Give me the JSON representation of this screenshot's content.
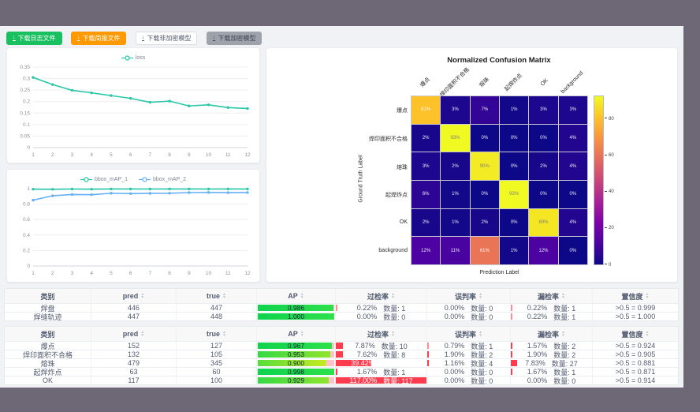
{
  "toolbar": {
    "buttons": [
      {
        "label": "下载日志文件",
        "bg": "#19c05f",
        "fg": "#ffffff",
        "border": "#19c05f"
      },
      {
        "label": "下载简报文件",
        "bg": "#ff9900",
        "fg": "#ffffff",
        "border": "#ff9900"
      },
      {
        "label": "下载非加密模型",
        "bg": "#ffffff",
        "fg": "#515a6e",
        "border": "#dcdee2"
      },
      {
        "label": "下载加密模型",
        "bg": "#9da2ab",
        "fg": "#3f4350",
        "border": "#9da2ab"
      }
    ]
  },
  "chart_data": [
    {
      "type": "line",
      "x": [
        1,
        2,
        3,
        4,
        5,
        6,
        7,
        8,
        9,
        10,
        11,
        12
      ],
      "series": [
        {
          "name": "loss",
          "color": "#29c6a7",
          "values": [
            0.305,
            0.274,
            0.249,
            0.238,
            0.226,
            0.214,
            0.197,
            0.202,
            0.181,
            0.186,
            0.174,
            0.17
          ]
        }
      ],
      "ylim": [
        0,
        0.35
      ],
      "yticks": [
        0,
        0.05,
        0.1,
        0.15,
        0.2,
        0.25,
        0.3,
        0.35
      ],
      "legend_position": "top",
      "grid": true
    },
    {
      "type": "line",
      "x": [
        1,
        2,
        3,
        4,
        5,
        6,
        7,
        8,
        9,
        10,
        11,
        12
      ],
      "series": [
        {
          "name": "bbox_mAP_1",
          "color": "#29c6a7",
          "values": [
            0.993,
            0.992,
            0.995,
            0.993,
            0.996,
            0.996,
            0.995,
            0.996,
            0.996,
            0.995,
            0.996,
            0.996
          ]
        },
        {
          "name": "bbox_mAP_2",
          "color": "#64b0f5",
          "values": [
            0.851,
            0.908,
            0.924,
            0.922,
            0.94,
            0.936,
            0.939,
            0.941,
            0.949,
            0.951,
            0.948,
            0.95
          ]
        }
      ],
      "ylim": [
        0,
        1
      ],
      "yticks": [
        0,
        0.2,
        0.4,
        0.6,
        0.8,
        1
      ],
      "legend_position": "top",
      "grid": true
    },
    {
      "type": "heatmap",
      "title": "Normalized Confusion Matrix",
      "xlabel": "Prediction Label",
      "ylabel": "Ground Truth Label",
      "categories": [
        "爆点",
        "焊印面积不合格",
        "熔珠",
        "起焊炸点",
        "OK",
        "background"
      ],
      "rows": [
        [
          81,
          3,
          7,
          1,
          3,
          3
        ],
        [
          2,
          93,
          0,
          0,
          0,
          4
        ],
        [
          3,
          2,
          90,
          0,
          2,
          4
        ],
        [
          6,
          1,
          0,
          93,
          0,
          0
        ],
        [
          2,
          1,
          2,
          0,
          89,
          4
        ],
        [
          12,
          11,
          61,
          1,
          12,
          0
        ]
      ],
      "value_suffix": "%",
      "colormap": "plasma",
      "colorbar_ticks": [
        0,
        20,
        40,
        60,
        80
      ]
    }
  ],
  "tables": [
    {
      "headers": [
        {
          "label": "类别",
          "sortable": false
        },
        {
          "label": "pred",
          "sortable": true
        },
        {
          "label": "true",
          "sortable": true
        },
        {
          "label": "AP",
          "sortable": true
        },
        {
          "label": "过检率",
          "sortable": true
        },
        {
          "label": "误判率",
          "sortable": true
        },
        {
          "label": "漏检率",
          "sortable": true
        },
        {
          "label": "置信度",
          "sortable": true
        }
      ],
      "count_label": "数量",
      "rows": [
        {
          "label": "焊盘",
          "pred": 446,
          "true": 447,
          "ap": 0.986,
          "over_pct": 0.22,
          "over_count": 1,
          "mis_pct": 0.0,
          "mis_count": 0,
          "miss_pct": 0.22,
          "miss_count": 1,
          "conf": ">0.5 = 0.999"
        },
        {
          "label": "焊缝轨迹",
          "pred": 447,
          "true": 448,
          "ap": 1.0,
          "over_pct": 0.0,
          "over_count": 0,
          "mis_pct": 0.0,
          "mis_count": 0,
          "miss_pct": 0.22,
          "miss_count": 1,
          "conf": ">0.5 = 1.000"
        }
      ]
    },
    {
      "headers": [
        {
          "label": "类别",
          "sortable": false
        },
        {
          "label": "pred",
          "sortable": true
        },
        {
          "label": "true",
          "sortable": true
        },
        {
          "label": "AP",
          "sortable": true
        },
        {
          "label": "过检率",
          "sortable": true
        },
        {
          "label": "误判率",
          "sortable": true
        },
        {
          "label": "漏检率",
          "sortable": true
        },
        {
          "label": "置信度",
          "sortable": true
        }
      ],
      "count_label": "数量",
      "rows": [
        {
          "label": "爆点",
          "pred": 152,
          "true": 127,
          "ap": 0.967,
          "over_pct": 7.87,
          "over_count": 10,
          "mis_pct": 0.79,
          "mis_count": 1,
          "miss_pct": 1.57,
          "miss_count": 2,
          "conf": ">0.5 = 0.924"
        },
        {
          "label": "焊印面积不合格",
          "pred": 132,
          "true": 105,
          "ap": 0.953,
          "over_pct": 7.62,
          "over_count": 8,
          "mis_pct": 1.9,
          "mis_count": 2,
          "miss_pct": 1.9,
          "miss_count": 2,
          "conf": ">0.5 = 0.905"
        },
        {
          "label": "熔珠",
          "pred": 479,
          "true": 345,
          "ap": 0.9,
          "over_pct": 39.42,
          "over_count": 136,
          "mis_pct": 1.16,
          "mis_count": 4,
          "miss_pct": 7.83,
          "miss_count": 27,
          "conf": ">0.5 = 0.881"
        },
        {
          "label": "起焊炸点",
          "pred": 63,
          "true": 60,
          "ap": 0.998,
          "over_pct": 1.67,
          "over_count": 1,
          "mis_pct": 0.0,
          "mis_count": 0,
          "miss_pct": 1.67,
          "miss_count": 1,
          "conf": ">0.5 = 0.871"
        },
        {
          "label": "OK",
          "pred": 117,
          "true": 100,
          "ap": 0.929,
          "over_pct": 117.0,
          "over_count": 117,
          "mis_pct": 0.0,
          "mis_count": 0,
          "miss_pct": 0.0,
          "miss_count": 0,
          "conf": ">0.5 = 0.914"
        }
      ]
    }
  ],
  "colors": {
    "rate_bar": "#ff3045",
    "ap_remainder": "#ffc2c8",
    "ap_gradient_high": [
      "#0ed34e",
      "#2ee04b"
    ],
    "ap_gradient_mid": [
      "#35d945",
      "#90e42c"
    ],
    "ap_gradient_low": [
      "#58dc3a",
      "#c6ea25"
    ]
  }
}
